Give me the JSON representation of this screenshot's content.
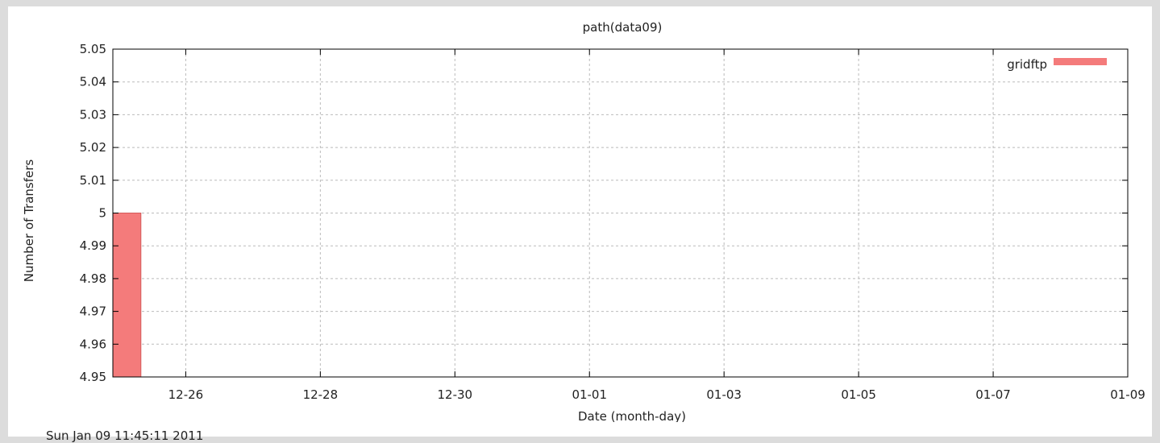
{
  "chart_data": {
    "type": "bar",
    "title": "path(data09)",
    "xlabel": "Date (month-day)",
    "ylabel": "Number of Transfers",
    "xlim": [
      "2010-12-24T22:00",
      "2011-01-09"
    ],
    "ylim": [
      4.95,
      5.05
    ],
    "y_ticks": [
      "4.95",
      "4.96",
      "4.97",
      "4.98",
      "4.99",
      "5",
      "5.01",
      "5.02",
      "5.03",
      "5.04",
      "5.05"
    ],
    "x_ticks": [
      {
        "date": "2010-12-26",
        "label": "12-26"
      },
      {
        "date": "2010-12-28",
        "label": "12-28"
      },
      {
        "date": "2010-12-30",
        "label": "12-30"
      },
      {
        "date": "2011-01-01",
        "label": "01-01"
      },
      {
        "date": "2011-01-03",
        "label": "01-03"
      },
      {
        "date": "2011-01-05",
        "label": "01-05"
      },
      {
        "date": "2011-01-07",
        "label": "01-07"
      },
      {
        "date": "2011-01-09",
        "label": "01-09"
      }
    ],
    "grid": true,
    "legend_position": "top-right",
    "series": [
      {
        "name": "gridftp",
        "color": "#f47b7b",
        "bars": [
          {
            "start": "2010-12-24T22:00",
            "end": "2010-12-25T08:00",
            "value": 5
          }
        ]
      }
    ]
  },
  "footer": {
    "timestamp": "Sun Jan 09 11:45:11 2011"
  }
}
